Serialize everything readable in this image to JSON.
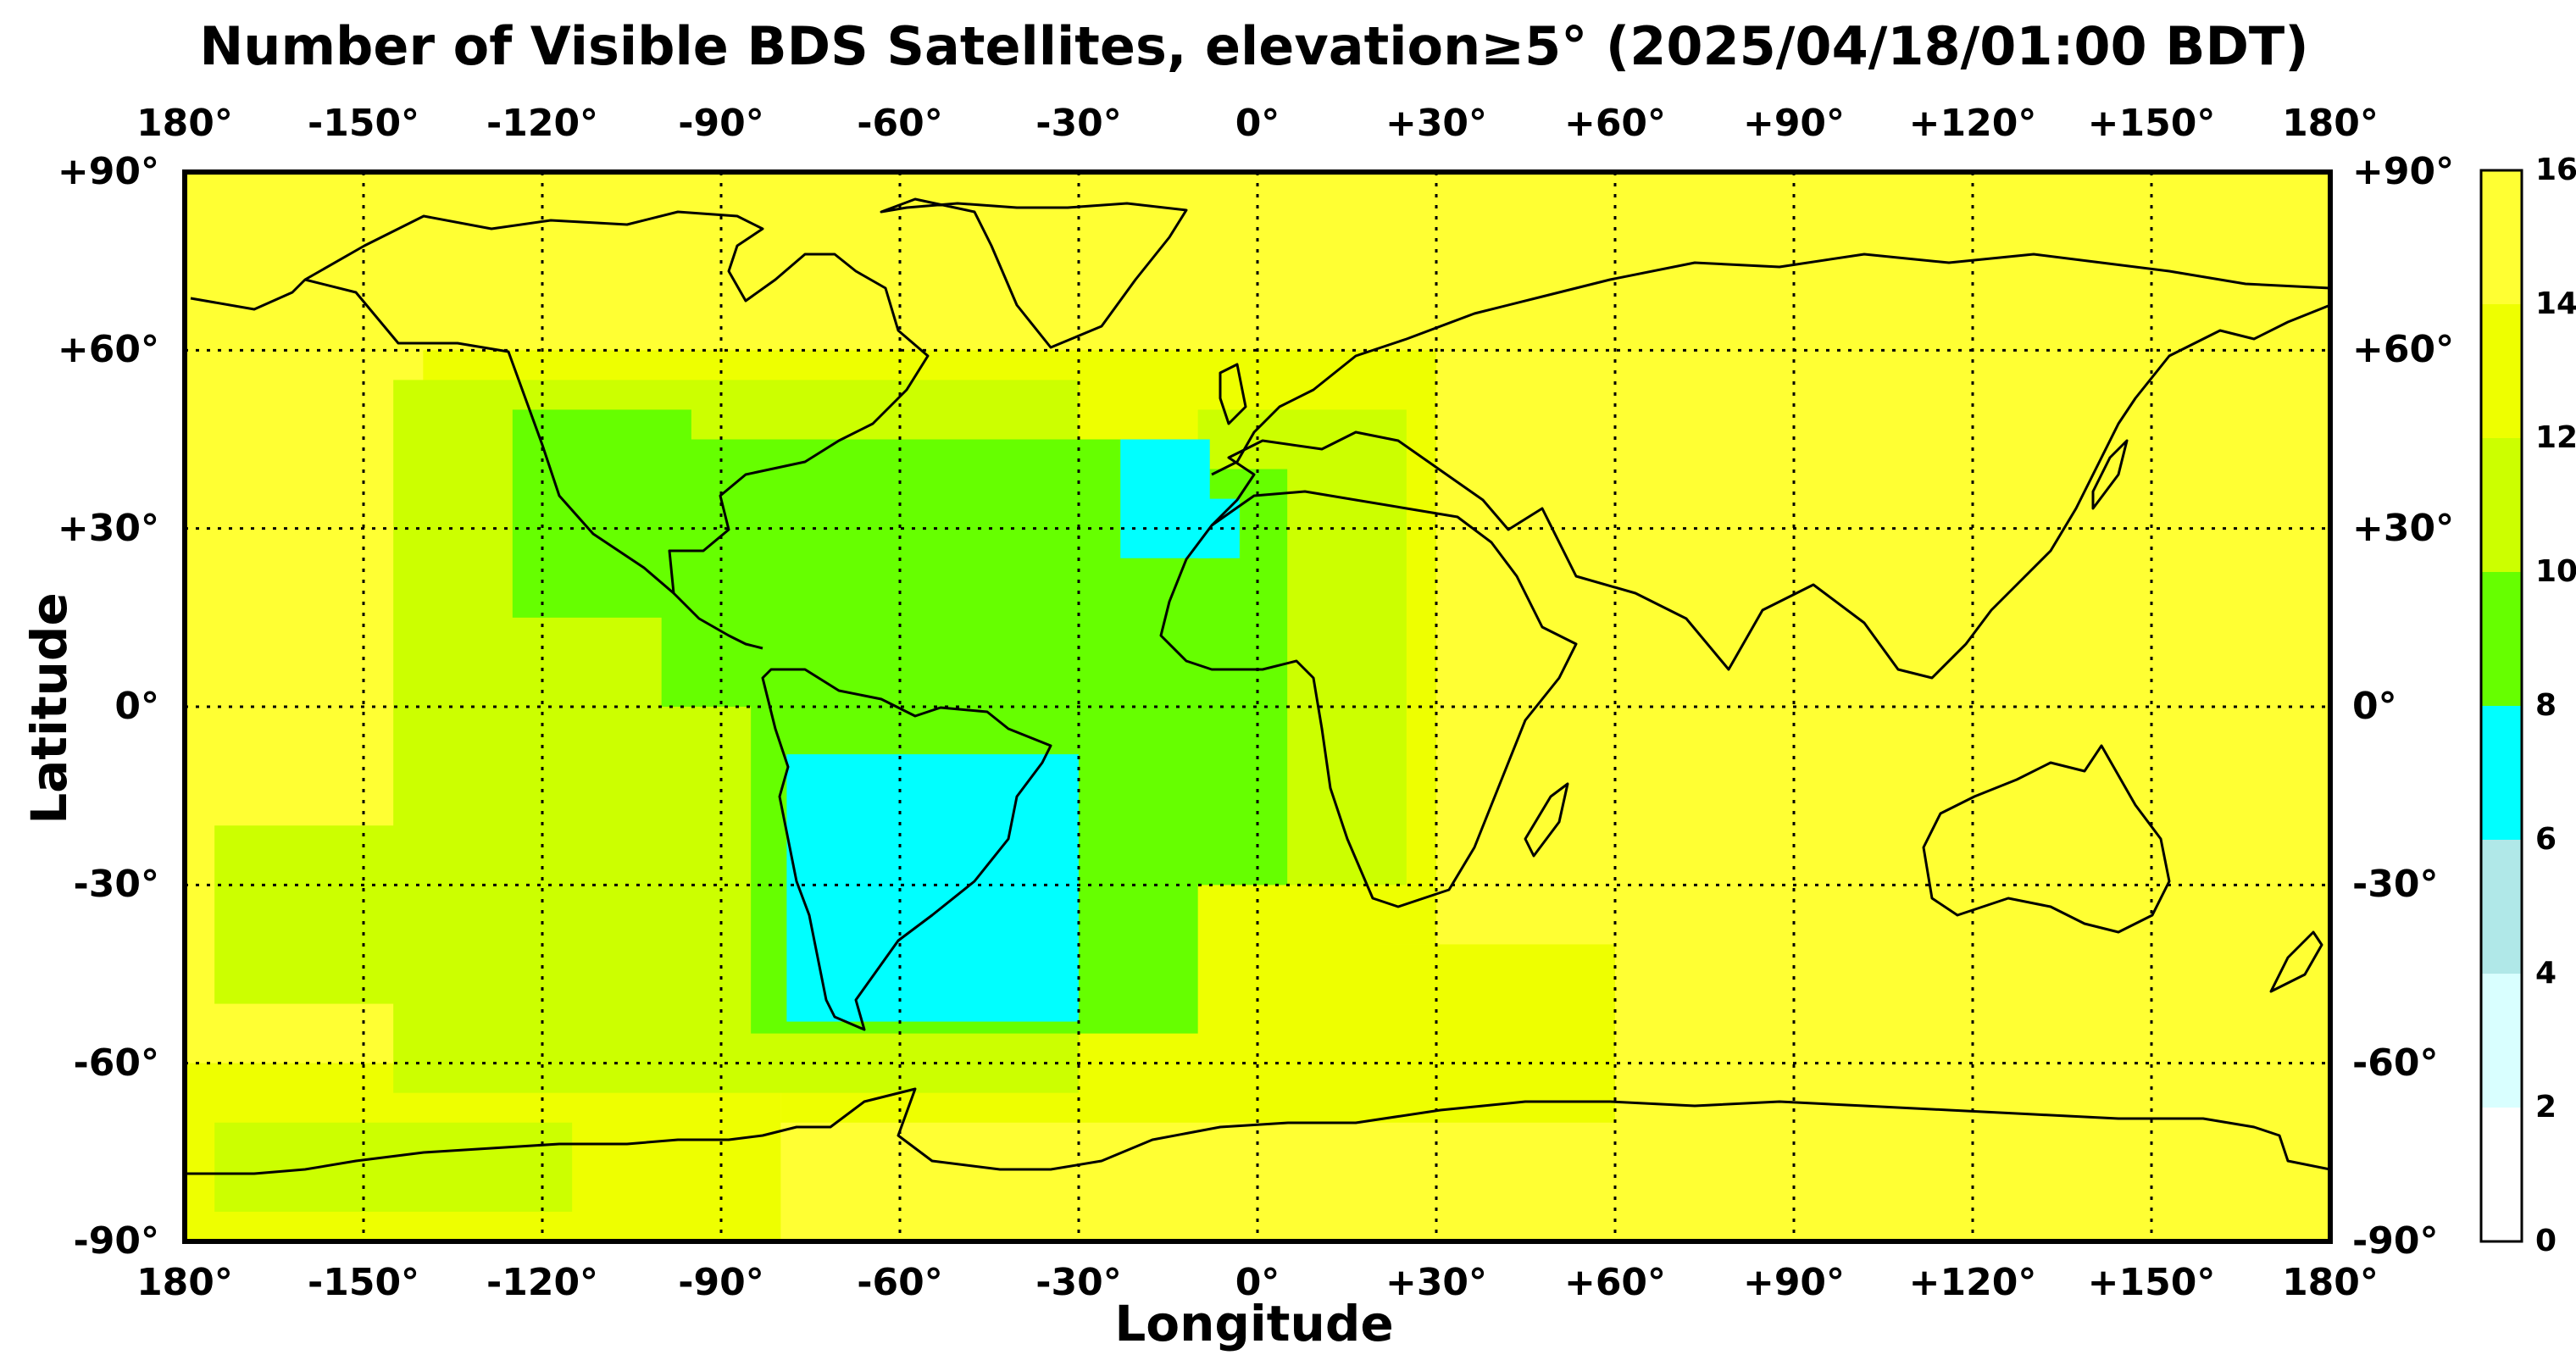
{
  "title": "Number of Visible BDS Satellites, elevation≥5° (2025/04/18/01:00 BDT)",
  "xlabel": "Longitude",
  "ylabel": "Latitude",
  "x_ticks": [
    "180°",
    "-150°",
    "-120°",
    "-90°",
    "-60°",
    "-30°",
    "0°",
    "+30°",
    "+60°",
    "+90°",
    "+120°",
    "+150°",
    "180°"
  ],
  "y_ticks": [
    "+90°",
    "+60°",
    "+30°",
    "0°",
    "-30°",
    "-60°",
    "-90°"
  ],
  "colorbar": {
    "ticks": [
      "0",
      "2",
      "4",
      "6",
      "8",
      "10",
      "12",
      "14",
      "16"
    ],
    "colors": [
      "#ffffff",
      "#d9ffff",
      "#b0e8e8",
      "#00ffff",
      "#66ff00",
      "#ccff00",
      "#eeff00",
      "#ffff33"
    ]
  },
  "chart_data": {
    "type": "heatmap",
    "title": "Number of Visible BDS Satellites, elevation≥5° (2025/04/18/01:00 BDT)",
    "xlabel": "Longitude",
    "ylabel": "Latitude",
    "xlim": [
      -180,
      180
    ],
    "ylim": [
      -90,
      90
    ],
    "color_scale": {
      "min": 0,
      "max": 16,
      "step": 2
    },
    "grid": true,
    "regions": [
      {
        "name": "background",
        "value": 15,
        "lon": [
          -180,
          180
        ],
        "lat": [
          -90,
          90
        ]
      },
      {
        "value": 13,
        "lon": [
          -180,
          -80
        ],
        "lat": [
          -90,
          -60
        ]
      },
      {
        "value": 13,
        "lon": [
          -140,
          20
        ],
        "lat": [
          -50,
          60
        ]
      },
      {
        "value": 13,
        "lon": [
          -80,
          60
        ],
        "lat": [
          -70,
          -40
        ]
      },
      {
        "value": 13,
        "lon": [
          -20,
          30
        ],
        "lat": [
          -40,
          60
        ]
      },
      {
        "value": 11,
        "lon": [
          -175,
          -115
        ],
        "lat": [
          -85,
          -70
        ]
      },
      {
        "value": 11,
        "lon": [
          -175,
          -125
        ],
        "lat": [
          -50,
          -20
        ]
      },
      {
        "value": 11,
        "lon": [
          -145,
          -30
        ],
        "lat": [
          -65,
          55
        ]
      },
      {
        "value": 11,
        "lon": [
          -10,
          25
        ],
        "lat": [
          -30,
          50
        ]
      },
      {
        "value": 9,
        "lon": [
          -125,
          -95
        ],
        "lat": [
          15,
          50
        ]
      },
      {
        "value": 9,
        "lon": [
          -100,
          -80
        ],
        "lat": [
          0,
          45
        ]
      },
      {
        "value": 9,
        "lon": [
          -85,
          -10
        ],
        "lat": [
          -55,
          45
        ]
      },
      {
        "value": 9,
        "lon": [
          -25,
          5
        ],
        "lat": [
          -30,
          40
        ]
      },
      {
        "value": 7,
        "lon": [
          -79,
          -30
        ],
        "lat": [
          -53,
          -8
        ]
      },
      {
        "value": 7,
        "lon": [
          -23,
          -8
        ],
        "lat": [
          25,
          45
        ]
      },
      {
        "value": 7,
        "lon": [
          -10,
          -3
        ],
        "lat": [
          25,
          35
        ]
      }
    ]
  }
}
